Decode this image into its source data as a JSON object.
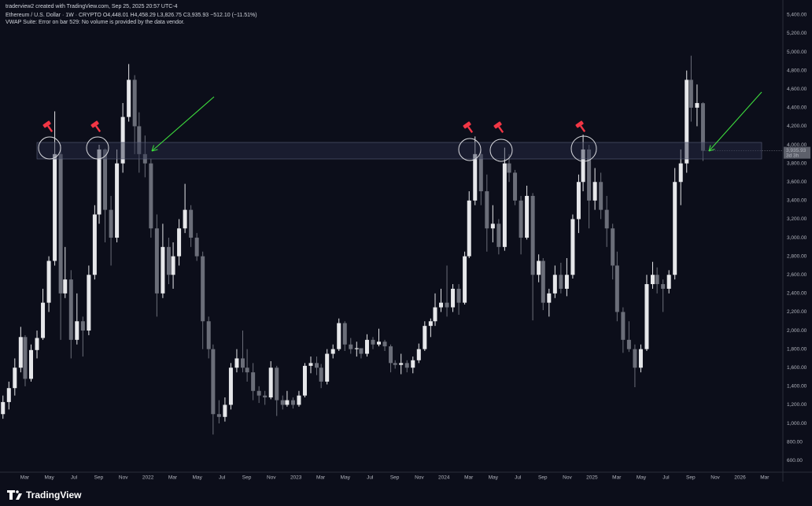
{
  "header": {
    "credit": "traderview2 created with TradingView.com, Sep 25, 2025 20:57 UTC-4",
    "symbol": "Ethereum / U.S. Dollar · 1W · CRYPTO",
    "ohlc": [
      "O4,448.01",
      "H4,458.29",
      "L3,826.75",
      "C3,935.93"
    ],
    "change": "−512.10 (−11.51%)",
    "indicator_status": "VWAP Suite: Error on bar 529: No volume is provided by the data vendor."
  },
  "footer": {
    "brand": "TradingView"
  },
  "chart_data": {
    "type": "candlestick",
    "up_color": "#e6e7ea",
    "down_color": "#6b6e79",
    "grid": false,
    "xlim": [
      2021,
      2026.29
    ],
    "ylim": [
      475,
      5441
    ],
    "last_price_label": "3,935.93",
    "countdown_label": "3d 3h",
    "x": [
      2021.02,
      2021.06,
      2021.1,
      2021.14,
      2021.17,
      2021.21,
      2021.25,
      2021.29,
      2021.33,
      2021.37,
      2021.41,
      2021.44,
      2021.48,
      2021.52,
      2021.56,
      2021.6,
      2021.64,
      2021.67,
      2021.71,
      2021.75,
      2021.79,
      2021.83,
      2021.87,
      2021.91,
      2021.94,
      2021.98,
      2022.02,
      2022.06,
      2022.1,
      2022.14,
      2022.17,
      2022.21,
      2022.25,
      2022.29,
      2022.33,
      2022.37,
      2022.41,
      2022.44,
      2022.48,
      2022.52,
      2022.56,
      2022.6,
      2022.64,
      2022.67,
      2022.71,
      2022.75,
      2022.79,
      2022.83,
      2022.87,
      2022.91,
      2022.94,
      2022.98,
      2023.02,
      2023.06,
      2023.1,
      2023.14,
      2023.17,
      2023.21,
      2023.25,
      2023.29,
      2023.33,
      2023.37,
      2023.41,
      2023.44,
      2023.48,
      2023.52,
      2023.56,
      2023.6,
      2023.64,
      2023.67,
      2023.71,
      2023.75,
      2023.79,
      2023.83,
      2023.87,
      2023.91,
      2023.94,
      2023.98,
      2024.02,
      2024.06,
      2024.1,
      2024.14,
      2024.17,
      2024.21,
      2024.25,
      2024.29,
      2024.33,
      2024.37,
      2024.41,
      2024.44,
      2024.48,
      2024.52,
      2024.56,
      2024.6,
      2024.64,
      2024.67,
      2024.71,
      2024.75,
      2024.79,
      2024.83,
      2024.87,
      2024.91,
      2024.94,
      2024.98,
      2025.02,
      2025.06,
      2025.1,
      2025.14,
      2025.17,
      2025.21,
      2025.25,
      2025.29,
      2025.33,
      2025.37,
      2025.41,
      2025.44,
      2025.48,
      2025.52,
      2025.56,
      2025.6,
      2025.64,
      2025.67,
      2025.71,
      2025.75
    ],
    "open": [
      1100,
      1230,
      1380,
      1600,
      1930,
      1480,
      1790,
      1920,
      2300,
      2750,
      3900,
      2400,
      2550,
      1900,
      2100,
      2000,
      2600,
      3250,
      3950,
      3300,
      3000,
      3800,
      4300,
      4700,
      4200,
      3900,
      3800,
      3100,
      2400,
      2900,
      2600,
      2800,
      3100,
      3300,
      3000,
      2800,
      2100,
      1800,
      1100,
      1070,
      1200,
      1600,
      1700,
      1600,
      1550,
      1350,
      1300,
      1280,
      1600,
      1250,
      1200,
      1250,
      1200,
      1300,
      1620,
      1650,
      1600,
      1450,
      1750,
      1800,
      2080,
      1850,
      1800,
      1810,
      1750,
      1900,
      1850,
      1880,
      1830,
      1650,
      1630,
      1650,
      1600,
      1680,
      1800,
      2050,
      2100,
      2250,
      2300,
      2250,
      2450,
      2300,
      2800,
      3400,
      3900,
      3500,
      3100,
      3150,
      2900,
      3800,
      3700,
      3400,
      3000,
      3450,
      2600,
      2750,
      2300,
      2400,
      2600,
      2450,
      2600,
      3200,
      3600,
      3950,
      3400,
      3600,
      3300,
      3100,
      2700,
      2200,
      1900,
      1800,
      1600,
      1800,
      2500,
      2600,
      2500,
      2450,
      2600,
      3600,
      3800,
      4700,
      4400,
      4448.01
    ],
    "high": [
      1300,
      1450,
      1700,
      2040,
      1950,
      1850,
      2000,
      2450,
      2800,
      4360,
      4000,
      2900,
      2650,
      2400,
      2150,
      2700,
      3350,
      4000,
      3960,
      3450,
      3950,
      4450,
      4870,
      4750,
      4350,
      4100,
      3850,
      3250,
      3150,
      3000,
      2950,
      3200,
      3580,
      3350,
      3050,
      2850,
      2150,
      1850,
      1250,
      1280,
      1650,
      1800,
      2000,
      1800,
      1650,
      1400,
      1350,
      1670,
      1620,
      1300,
      1350,
      1280,
      1350,
      1650,
      1720,
      1720,
      1640,
      1800,
      1850,
      2130,
      2100,
      1920,
      1880,
      1800,
      1960,
      1930,
      2020,
      1900,
      1850,
      1680,
      1750,
      1680,
      1720,
      1860,
      2100,
      2130,
      2400,
      2450,
      2700,
      2500,
      2500,
      2850,
      3500,
      4090,
      3950,
      3680,
      3350,
      3200,
      3970,
      3900,
      3730,
      3450,
      3560,
      3480,
      2820,
      2780,
      2450,
      2700,
      2730,
      2780,
      3250,
      3680,
      4110,
      4000,
      3750,
      3700,
      3450,
      3150,
      2850,
      2250,
      2100,
      1850,
      1850,
      2600,
      2740,
      2680,
      2550,
      2650,
      3750,
      3950,
      4800,
      4960,
      4650,
      4458.29
    ],
    "low": [
      1050,
      1150,
      1300,
      1550,
      1400,
      1450,
      1700,
      1900,
      2200,
      2700,
      1900,
      2350,
      1700,
      1850,
      1720,
      1950,
      2550,
      3150,
      2950,
      2700,
      2950,
      3700,
      4250,
      3900,
      3700,
      3650,
      3000,
      2150,
      2350,
      2500,
      2450,
      2700,
      3050,
      2900,
      2750,
      1800,
      1700,
      880,
      1000,
      1020,
      1150,
      1550,
      1550,
      1450,
      1250,
      1220,
      1200,
      1260,
      1080,
      1150,
      1180,
      1160,
      1180,
      1280,
      1540,
      1520,
      1380,
      1420,
      1700,
      1780,
      1780,
      1750,
      1720,
      1700,
      1720,
      1800,
      1830,
      1780,
      1550,
      1590,
      1530,
      1550,
      1540,
      1650,
      1780,
      1930,
      2050,
      2200,
      2150,
      2200,
      2170,
      2280,
      2780,
      3350,
      3350,
      2850,
      2950,
      2820,
      2860,
      3600,
      3350,
      2820,
      2980,
      2110,
      2520,
      2220,
      2150,
      2350,
      2400,
      2370,
      2560,
      3050,
      3500,
      3100,
      3300,
      3200,
      2900,
      2550,
      2100,
      1760,
      1770,
      1390,
      1550,
      1780,
      2450,
      2400,
      2200,
      2400,
      2550,
      3350,
      3700,
      4250,
      4200,
      3826.75
    ],
    "close": [
      1230,
      1380,
      1600,
      1930,
      1480,
      1790,
      1920,
      2300,
      2750,
      3900,
      2400,
      2550,
      1900,
      2100,
      2000,
      2600,
      3250,
      3950,
      3300,
      3000,
      3800,
      4300,
      4700,
      4200,
      3900,
      3800,
      3100,
      2400,
      2900,
      2600,
      2800,
      3100,
      3300,
      3000,
      2800,
      2100,
      1800,
      1100,
      1070,
      1200,
      1600,
      1700,
      1600,
      1550,
      1350,
      1300,
      1280,
      1600,
      1250,
      1200,
      1250,
      1200,
      1300,
      1620,
      1650,
      1600,
      1450,
      1750,
      1800,
      2080,
      1850,
      1800,
      1810,
      1750,
      1900,
      1850,
      1880,
      1830,
      1650,
      1630,
      1650,
      1600,
      1680,
      1800,
      2050,
      2100,
      2250,
      2300,
      2250,
      2450,
      2300,
      2800,
      3400,
      3900,
      3500,
      3100,
      3150,
      2900,
      3800,
      3700,
      3400,
      3000,
      3450,
      2600,
      2750,
      2300,
      2400,
      2600,
      2450,
      2600,
      3200,
      3600,
      3950,
      3400,
      3600,
      3300,
      3100,
      2700,
      2200,
      1900,
      1800,
      1600,
      1800,
      2500,
      2600,
      2500,
      2450,
      2600,
      3600,
      3800,
      4700,
      4400,
      4450,
      3935.93
    ],
    "xticks": [
      {
        "value": 2021.167,
        "label": "Mar"
      },
      {
        "value": 2021.333,
        "label": "May"
      },
      {
        "value": 2021.5,
        "label": "Jul"
      },
      {
        "value": 2021.667,
        "label": "Sep"
      },
      {
        "value": 2021.833,
        "label": "Nov"
      },
      2022,
      {
        "value": 2022.167,
        "label": "Mar"
      },
      {
        "value": 2022.333,
        "label": "May"
      },
      {
        "value": 2022.5,
        "label": "Jul"
      },
      {
        "value": 2022.667,
        "label": "Sep"
      },
      {
        "value": 2022.833,
        "label": "Nov"
      },
      2023,
      {
        "value": 2023.167,
        "label": "Mar"
      },
      {
        "value": 2023.333,
        "label": "May"
      },
      {
        "value": 2023.5,
        "label": "Jul"
      },
      {
        "value": 2023.667,
        "label": "Sep"
      },
      {
        "value": 2023.833,
        "label": "Nov"
      },
      2024,
      {
        "value": 2024.167,
        "label": "Mar"
      },
      {
        "value": 2024.333,
        "label": "May"
      },
      {
        "value": 2024.5,
        "label": "Jul"
      },
      {
        "value": 2024.667,
        "label": "Sep"
      },
      {
        "value": 2024.833,
        "label": "Nov"
      },
      2025,
      {
        "value": 2025.167,
        "label": "Mar"
      },
      {
        "value": 2025.333,
        "label": "May"
      },
      {
        "value": 2025.5,
        "label": "Jul"
      },
      {
        "value": 2025.667,
        "label": "Sep"
      },
      {
        "value": 2025.833,
        "label": "Nov"
      },
      2026,
      {
        "value": 2026.167,
        "label": "Mar"
      }
    ],
    "yticks": [
      {
        "value": 600,
        "label": "600.00"
      },
      {
        "value": 800,
        "label": "800.00"
      },
      {
        "value": 1000,
        "label": "1,000.00"
      },
      {
        "value": 1200,
        "label": "1,200.00"
      },
      {
        "value": 1400,
        "label": "1,400.00"
      },
      {
        "value": 1600,
        "label": "1,600.00"
      },
      {
        "value": 1800,
        "label": "1,800.00"
      },
      {
        "value": 2000,
        "label": "2,000.00"
      },
      {
        "value": 2200,
        "label": "2,200.00"
      },
      {
        "value": 2400,
        "label": "2,400.00"
      },
      {
        "value": 2600,
        "label": "2,600.00"
      },
      {
        "value": 2800,
        "label": "2,800.00"
      },
      {
        "value": 3000,
        "label": "3,000.00"
      },
      {
        "value": 3200,
        "label": "3,200.00"
      },
      {
        "value": 3400,
        "label": "3,400.00"
      },
      {
        "value": 3600,
        "label": "3,600.00"
      },
      {
        "value": 3800,
        "label": "3,800.00"
      },
      {
        "value": 4000,
        "label": "4,000.00"
      },
      {
        "value": 4200,
        "label": "4,200.00"
      },
      {
        "value": 4400,
        "label": "4,400.00"
      },
      {
        "value": 4600,
        "label": "4,600.00"
      },
      {
        "value": 4800,
        "label": "4,800.00"
      },
      {
        "value": 5000,
        "label": "5,000.00"
      },
      {
        "value": 5200,
        "label": "5,200.00"
      },
      {
        "value": 5400,
        "label": "5,400.00"
      }
    ]
  }
}
